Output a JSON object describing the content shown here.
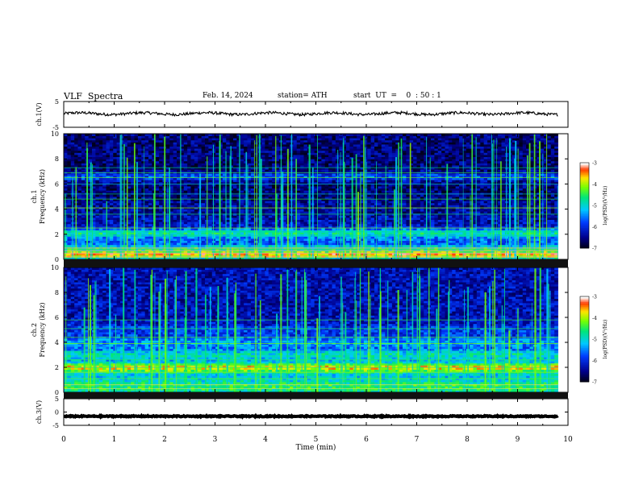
{
  "header": {
    "title": "VLF  Spectra",
    "date": "Feb. 14, 2024",
    "station": "station= ATH",
    "start": "start  UT  =    0  : 50 : 1"
  },
  "chart_data": [
    {
      "type": "line",
      "panel": "ch1-waveform",
      "ylabel": "ch.1(V)",
      "yticks": [
        "5",
        "-5"
      ],
      "ylim": [
        -5,
        5
      ],
      "xlim": [
        0,
        10
      ],
      "description_values": {
        "baseline_V": 0.3,
        "data_end_min": 9.8
      }
    },
    {
      "type": "heatmap",
      "panel": "ch1-spectrogram",
      "ylabel": "ch.1\nFrequency  (kHz)",
      "yticks": [
        "0",
        "2",
        "4",
        "6",
        "8",
        "10"
      ],
      "ylim": [
        0,
        10
      ],
      "xlim": [
        0,
        10
      ],
      "colorbar": {
        "label": "log(PSD)(V²/Hz)",
        "ticks": [
          "-3",
          "-4",
          "-5",
          "-6",
          "-7"
        ],
        "range": [
          -7,
          -3
        ]
      },
      "bands": [
        {
          "f": 0.4,
          "level": -3.6
        },
        {
          "f": 0.8,
          "level": -4.6
        },
        {
          "f": 1.5,
          "level": -5.8
        },
        {
          "f": 2.1,
          "level": -4.9
        },
        {
          "f": 4.3,
          "level": -6.5
        },
        {
          "f": 6.6,
          "level": -5.9
        }
      ]
    },
    {
      "type": "heatmap",
      "panel": "ch2-spectrogram",
      "ylabel": "ch.2\nFrequency  (kHz)",
      "yticks": [
        "0",
        "2",
        "4",
        "6",
        "8",
        "10"
      ],
      "ylim": [
        0,
        10
      ],
      "xlim": [
        0,
        10
      ],
      "colorbar": {
        "label": "log(PSD)(V²/Hz)",
        "ticks": [
          "-3",
          "-4",
          "-5",
          "-6",
          "-7"
        ],
        "range": [
          -7,
          -3
        ]
      },
      "bands": [
        {
          "f": 0.5,
          "level": -4.6
        },
        {
          "f": 2.0,
          "level": -3.8
        },
        {
          "f": 3.0,
          "level": -5.0
        },
        {
          "f": 4.0,
          "level": -5.5
        },
        {
          "f": 5.0,
          "level": -6.0
        },
        {
          "f": 8.0,
          "level": -6.8
        }
      ]
    },
    {
      "type": "line",
      "panel": "ch3-waveform",
      "ylabel": "ch.3(V)",
      "yticks": [
        "5",
        "0",
        "-5"
      ],
      "ylim": [
        -5,
        5
      ],
      "xlim": [
        0,
        10
      ],
      "description_values": {
        "baseline_V": -1.6,
        "data_end_min": 9.8
      }
    }
  ],
  "xaxis": {
    "label": "Time  (min)",
    "ticks": [
      "0",
      "1",
      "2",
      "3",
      "4",
      "5",
      "6",
      "7",
      "8",
      "9",
      "10"
    ]
  }
}
